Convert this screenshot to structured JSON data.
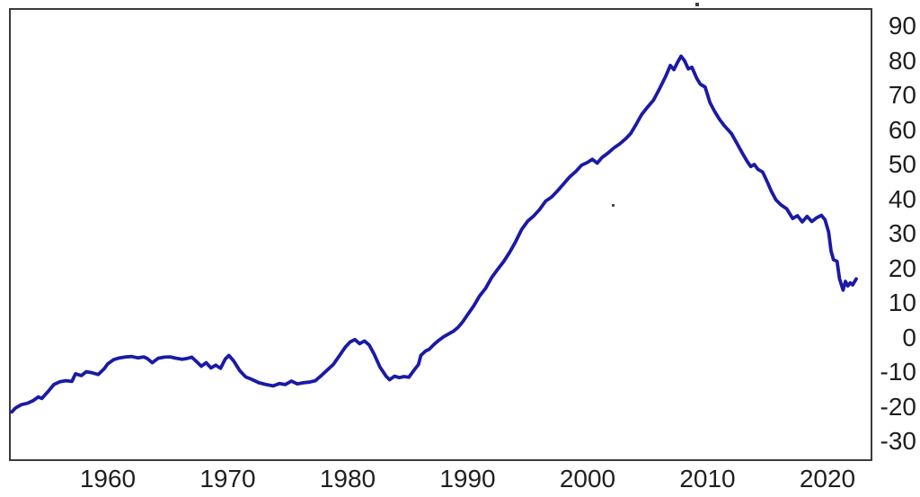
{
  "figure": {
    "background": "#ffffff",
    "frame_color": "#3b3b3b",
    "tick_label_color": "#1f1f1f"
  },
  "chart_data": {
    "type": "line",
    "title": "",
    "subtitle": "",
    "xlabel": "",
    "ylabel": "",
    "legend": "none",
    "grid": false,
    "y_axis_side": "right",
    "xlim": [
      1951.8,
      2023.4
    ],
    "ylim": [
      -30,
      90
    ],
    "x_ticks": [
      1960,
      1970,
      1980,
      1990,
      2000,
      2010,
      2020
    ],
    "y_ticks": [
      90,
      80,
      70,
      60,
      50,
      40,
      30,
      20,
      10,
      0,
      -10,
      -20,
      -30
    ],
    "line_color": "#1b1aa5",
    "line_width": 3.8,
    "series": [
      {
        "name": "series-1",
        "points": [
          [
            1952.0,
            -21.5
          ],
          [
            1952.3,
            -20.4
          ],
          [
            1952.8,
            -19.4
          ],
          [
            1953.3,
            -19.0
          ],
          [
            1953.8,
            -18.2
          ],
          [
            1954.2,
            -17.2
          ],
          [
            1954.5,
            -17.6
          ],
          [
            1955.0,
            -15.7
          ],
          [
            1955.5,
            -13.6
          ],
          [
            1956.0,
            -12.8
          ],
          [
            1956.5,
            -12.5
          ],
          [
            1957.0,
            -12.7
          ],
          [
            1957.3,
            -10.5
          ],
          [
            1957.8,
            -11.0
          ],
          [
            1958.2,
            -9.9
          ],
          [
            1958.7,
            -10.2
          ],
          [
            1959.2,
            -10.7
          ],
          [
            1959.7,
            -9.0
          ],
          [
            1960.0,
            -7.6
          ],
          [
            1960.5,
            -6.4
          ],
          [
            1961.0,
            -5.9
          ],
          [
            1961.5,
            -5.6
          ],
          [
            1962.0,
            -5.5
          ],
          [
            1962.5,
            -5.9
          ],
          [
            1963.0,
            -5.6
          ],
          [
            1963.3,
            -6.1
          ],
          [
            1963.7,
            -7.3
          ],
          [
            1964.2,
            -6.0
          ],
          [
            1964.7,
            -5.7
          ],
          [
            1965.2,
            -5.6
          ],
          [
            1965.7,
            -6.0
          ],
          [
            1966.2,
            -6.3
          ],
          [
            1966.7,
            -6.0
          ],
          [
            1967.0,
            -5.7
          ],
          [
            1967.4,
            -7.0
          ],
          [
            1967.8,
            -8.3
          ],
          [
            1968.2,
            -7.3
          ],
          [
            1968.6,
            -8.8
          ],
          [
            1969.0,
            -8.0
          ],
          [
            1969.4,
            -8.9
          ],
          [
            1969.8,
            -6.2
          ],
          [
            1970.1,
            -5.2
          ],
          [
            1970.5,
            -6.8
          ],
          [
            1971.0,
            -9.6
          ],
          [
            1971.5,
            -11.4
          ],
          [
            1972.0,
            -12.1
          ],
          [
            1972.6,
            -13.1
          ],
          [
            1973.2,
            -13.6
          ],
          [
            1973.8,
            -14.0
          ],
          [
            1974.3,
            -13.3
          ],
          [
            1974.8,
            -13.6
          ],
          [
            1975.3,
            -12.6
          ],
          [
            1975.8,
            -13.4
          ],
          [
            1976.3,
            -13.1
          ],
          [
            1976.8,
            -12.9
          ],
          [
            1977.3,
            -12.5
          ],
          [
            1977.8,
            -11.0
          ],
          [
            1978.3,
            -9.4
          ],
          [
            1978.8,
            -7.8
          ],
          [
            1979.3,
            -5.3
          ],
          [
            1979.8,
            -2.8
          ],
          [
            1980.2,
            -1.3
          ],
          [
            1980.6,
            -0.6
          ],
          [
            1981.0,
            -1.8
          ],
          [
            1981.4,
            -1.0
          ],
          [
            1981.8,
            -2.2
          ],
          [
            1982.2,
            -4.8
          ],
          [
            1982.7,
            -8.6
          ],
          [
            1983.2,
            -11.2
          ],
          [
            1983.5,
            -12.2
          ],
          [
            1983.9,
            -11.2
          ],
          [
            1984.3,
            -11.6
          ],
          [
            1984.7,
            -11.3
          ],
          [
            1985.1,
            -11.5
          ],
          [
            1985.5,
            -9.6
          ],
          [
            1985.9,
            -7.8
          ],
          [
            1986.1,
            -5.2
          ],
          [
            1986.5,
            -3.9
          ],
          [
            1986.8,
            -3.4
          ],
          [
            1987.2,
            -2.0
          ],
          [
            1987.6,
            -0.8
          ],
          [
            1988.0,
            0.2
          ],
          [
            1988.4,
            1.0
          ],
          [
            1988.8,
            1.8
          ],
          [
            1989.2,
            2.9
          ],
          [
            1989.6,
            4.6
          ],
          [
            1990.0,
            6.6
          ],
          [
            1990.5,
            9.1
          ],
          [
            1991.0,
            12.0
          ],
          [
            1991.5,
            14.2
          ],
          [
            1992.0,
            17.3
          ],
          [
            1992.5,
            19.7
          ],
          [
            1993.0,
            21.9
          ],
          [
            1993.5,
            24.6
          ],
          [
            1994.0,
            27.7
          ],
          [
            1994.5,
            31.2
          ],
          [
            1995.0,
            33.6
          ],
          [
            1995.5,
            35.1
          ],
          [
            1996.0,
            37.0
          ],
          [
            1996.5,
            39.4
          ],
          [
            1997.0,
            40.6
          ],
          [
            1997.5,
            42.4
          ],
          [
            1998.0,
            44.4
          ],
          [
            1998.5,
            46.4
          ],
          [
            1999.0,
            47.9
          ],
          [
            1999.5,
            49.8
          ],
          [
            2000.0,
            50.6
          ],
          [
            2000.4,
            51.5
          ],
          [
            2000.8,
            50.4
          ],
          [
            2001.2,
            52.0
          ],
          [
            2001.7,
            53.3
          ],
          [
            2002.2,
            54.8
          ],
          [
            2002.7,
            56.0
          ],
          [
            2003.2,
            57.5
          ],
          [
            2003.6,
            59.0
          ],
          [
            2004.0,
            61.3
          ],
          [
            2004.5,
            64.4
          ],
          [
            2005.0,
            66.6
          ],
          [
            2005.5,
            68.6
          ],
          [
            2006.0,
            71.9
          ],
          [
            2006.5,
            75.4
          ],
          [
            2006.9,
            78.6
          ],
          [
            2007.2,
            77.4
          ],
          [
            2007.5,
            79.5
          ],
          [
            2007.8,
            81.3
          ],
          [
            2008.1,
            79.9
          ],
          [
            2008.4,
            77.6
          ],
          [
            2008.7,
            78.1
          ],
          [
            2009.1,
            74.9
          ],
          [
            2009.4,
            73.2
          ],
          [
            2009.8,
            72.4
          ],
          [
            2010.2,
            67.9
          ],
          [
            2010.6,
            65.3
          ],
          [
            2011.0,
            63.0
          ],
          [
            2011.4,
            61.2
          ],
          [
            2012.0,
            58.9
          ],
          [
            2012.5,
            55.8
          ],
          [
            2012.9,
            53.3
          ],
          [
            2013.3,
            50.9
          ],
          [
            2013.6,
            49.4
          ],
          [
            2013.9,
            50.0
          ],
          [
            2014.2,
            48.6
          ],
          [
            2014.6,
            47.8
          ],
          [
            2015.0,
            44.8
          ],
          [
            2015.3,
            42.4
          ],
          [
            2015.7,
            39.8
          ],
          [
            2016.1,
            38.4
          ],
          [
            2016.6,
            37.2
          ],
          [
            2017.1,
            34.4
          ],
          [
            2017.5,
            35.2
          ],
          [
            2017.9,
            33.4
          ],
          [
            2018.3,
            35.0
          ],
          [
            2018.7,
            33.5
          ],
          [
            2019.1,
            34.6
          ],
          [
            2019.5,
            35.3
          ],
          [
            2019.8,
            34.0
          ],
          [
            2020.1,
            30.5
          ],
          [
            2020.3,
            25.0
          ],
          [
            2020.5,
            22.5
          ],
          [
            2020.8,
            22.0
          ],
          [
            2021.0,
            17.0
          ],
          [
            2021.3,
            13.7
          ],
          [
            2021.5,
            16.2
          ],
          [
            2021.7,
            14.9
          ],
          [
            2021.9,
            15.8
          ],
          [
            2022.1,
            15.2
          ],
          [
            2022.4,
            16.9
          ]
        ]
      }
    ]
  }
}
